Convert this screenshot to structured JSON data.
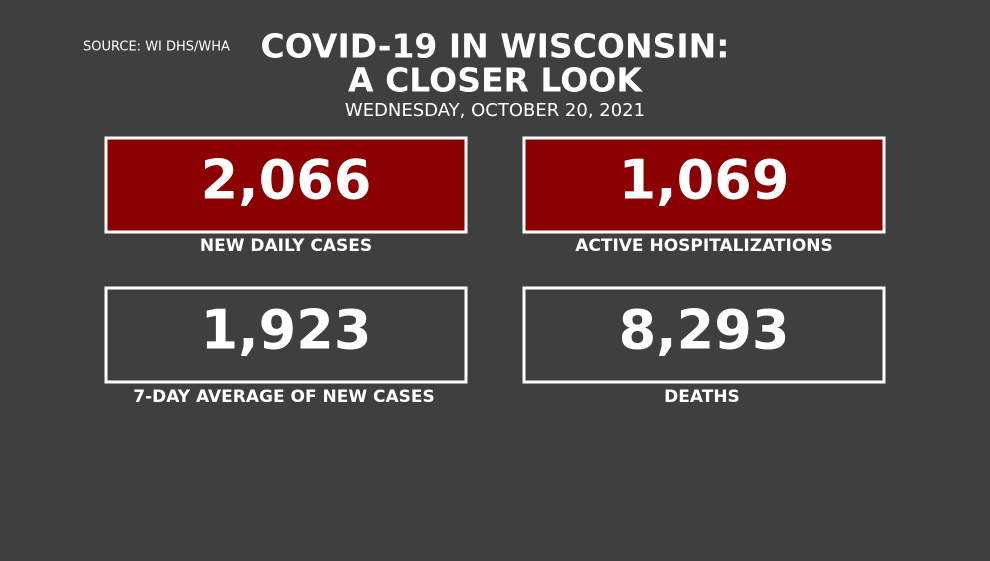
{
  "header": {
    "source": "SOURCE: WI DHS/WHA",
    "title_lines": [
      "COVID-19 IN WISCONSIN:",
      "A CLOSER LOOK"
    ],
    "date": "WEDNESDAY, OCTOBER 20, 2021"
  },
  "stats": [
    {
      "value": "2,066",
      "label": "NEW DAILY CASES"
    },
    {
      "value": "1,069",
      "label": "ACTIVE HOSPITALIZATIONS"
    },
    {
      "value": "1,923",
      "label": "7-DAY AVERAGE OF NEW CASES"
    },
    {
      "value": "8,293",
      "label": "DEATHS"
    }
  ]
}
